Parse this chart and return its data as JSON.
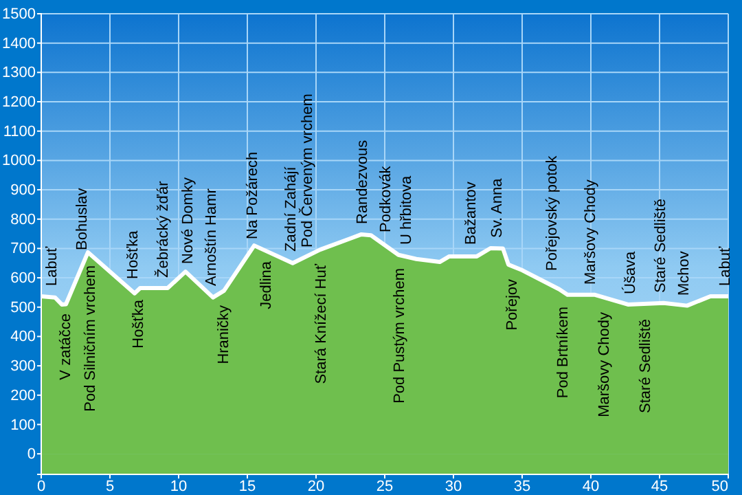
{
  "chart_data": {
    "type": "area",
    "x": [
      0,
      1,
      1.5,
      1.8,
      3.4,
      6.8,
      7.2,
      9.2,
      10.5,
      12.5,
      13.3,
      15.5,
      18.3,
      20.3,
      23.3,
      24,
      26,
      27.3,
      29,
      29.7,
      31.7,
      32.7,
      33.6,
      34,
      35,
      37.7,
      38.3,
      40.3,
      42.7,
      45.3,
      47,
      48.7,
      50
    ],
    "series": [
      {
        "color": "#6fbf4e",
        "values": [
          537,
          533,
          509,
          510,
          687,
          547,
          565,
          565,
          621,
          533,
          556,
          710,
          650,
          696,
          748,
          745,
          678,
          664,
          654,
          673,
          673,
          701,
          700,
          645,
          626,
          561,
          542,
          542,
          509,
          514,
          505,
          537,
          537
        ]
      }
    ],
    "xlim": [
      0,
      50
    ],
    "ylim": [
      -70,
      1500
    ],
    "xticks": [
      0,
      5,
      10,
      15,
      20,
      25,
      30,
      35,
      40,
      45,
      50
    ],
    "yticks": [
      0,
      100,
      200,
      300,
      400,
      500,
      600,
      700,
      800,
      900,
      1000,
      1100,
      1200,
      1300,
      1400,
      1500
    ],
    "grid": true,
    "annotations": [
      "Labuť",
      "V zatáčce",
      "Bohuslav",
      "Pod Silničním vrchem",
      "Hošťka",
      "Hošťka",
      "Žebrácký žďár",
      "Nové Domky",
      "Arnoštín Hamr",
      "Hraničky",
      "Na Požárech",
      "Jedlina",
      "Zadní Zahájí",
      "Pod Červeným vrchem",
      "Stará Knížecí Huť",
      "Randezvous",
      "Podkovák",
      "U hřbitova",
      "Pod Pustým vrchem",
      "Bažantov",
      "Sv. Anna",
      "Pořejov",
      "Pořejovský potok",
      "Pod Brtníkem",
      "Maršovy Chody",
      "Maršovy Chody",
      "Úšava",
      "Staré Sedliště",
      "Staré Sedliště",
      "Mchov",
      "Labuť"
    ]
  }
}
